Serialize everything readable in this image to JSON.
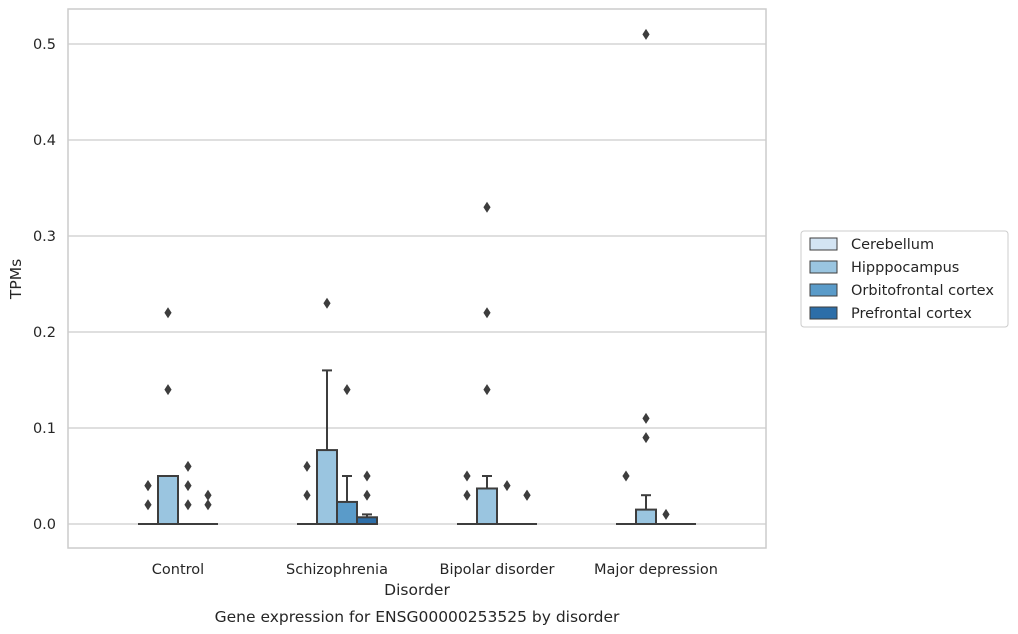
{
  "chart_data": {
    "type": "box",
    "title": "Gene expression for ENSG00000253525 by disorder",
    "xlabel": "Disorder",
    "ylabel": "TPMs",
    "ylim": [
      -0.025,
      0.535
    ],
    "yticks": [
      "0.0",
      "0.1",
      "0.2",
      "0.3",
      "0.4",
      "0.5"
    ],
    "grid": true,
    "legend_position": "right",
    "categories": [
      "Control",
      "Schizophrenia",
      "Bipolar disorder",
      "Major depression"
    ],
    "series": [
      {
        "name": "Cerebellum",
        "color": "#d3e4f3",
        "boxes": [
          {
            "q1": 0,
            "median": 0,
            "q3": 0,
            "whisker_low": 0,
            "whisker_high": 0,
            "outliers": [
              0.02,
              0.04,
              0.04
            ]
          },
          {
            "q1": 0,
            "median": 0,
            "q3": 0,
            "whisker_low": 0,
            "whisker_high": 0,
            "outliers": [
              0.03,
              0.06
            ]
          },
          {
            "q1": 0,
            "median": 0,
            "q3": 0,
            "whisker_low": 0,
            "whisker_high": 0,
            "outliers": [
              0.03,
              0.05
            ]
          },
          {
            "q1": 0,
            "median": 0,
            "q3": 0,
            "whisker_low": 0,
            "whisker_high": 0,
            "outliers": [
              0.05
            ]
          }
        ]
      },
      {
        "name": "Hipppocampus",
        "color": "#9ac5e0",
        "boxes": [
          {
            "q1": 0,
            "median": 0,
            "q3": 0.05,
            "whisker_low": 0,
            "whisker_high": 0.05,
            "outliers": [
              0.14,
              0.22
            ]
          },
          {
            "q1": 0,
            "median": 0,
            "q3": 0.077,
            "whisker_low": 0,
            "whisker_high": 0.16,
            "outliers": [
              0.23
            ]
          },
          {
            "q1": 0,
            "median": 0,
            "q3": 0.037,
            "whisker_low": 0,
            "whisker_high": 0.05,
            "outliers": [
              0.14,
              0.22,
              0.33
            ]
          },
          {
            "q1": 0,
            "median": 0,
            "q3": 0.015,
            "whisker_low": 0,
            "whisker_high": 0.03,
            "outliers": [
              0.09,
              0.11,
              0.51
            ]
          }
        ]
      },
      {
        "name": "Orbitofrontal cortex",
        "color": "#5a9bc9",
        "boxes": [
          {
            "q1": 0,
            "median": 0,
            "q3": 0,
            "whisker_low": 0,
            "whisker_high": 0,
            "outliers": [
              0.02,
              0.04,
              0.06
            ]
          },
          {
            "q1": 0,
            "median": 0,
            "q3": 0.023,
            "whisker_low": 0,
            "whisker_high": 0.05,
            "outliers": [
              0.14
            ]
          },
          {
            "q1": 0,
            "median": 0,
            "q3": 0,
            "whisker_low": 0,
            "whisker_high": 0,
            "outliers": [
              0.04
            ]
          },
          {
            "q1": 0,
            "median": 0,
            "q3": 0,
            "whisker_low": 0,
            "whisker_high": 0,
            "outliers": [
              0.01
            ]
          }
        ]
      },
      {
        "name": "Prefrontal cortex",
        "color": "#2d6ea8",
        "boxes": [
          {
            "q1": 0,
            "median": 0,
            "q3": 0,
            "whisker_low": 0,
            "whisker_high": 0,
            "outliers": [
              0.02,
              0.03
            ]
          },
          {
            "q1": 0,
            "median": 0,
            "q3": 0.007,
            "whisker_low": 0,
            "whisker_high": 0.01,
            "outliers": [
              0.03,
              0.05
            ]
          },
          {
            "q1": 0,
            "median": 0,
            "q3": 0,
            "whisker_low": 0,
            "whisker_high": 0,
            "outliers": [
              0.03,
              0.03
            ]
          },
          {
            "q1": 0,
            "median": 0,
            "q3": 0,
            "whisker_low": 0,
            "whisker_high": 0,
            "outliers": []
          }
        ]
      }
    ]
  }
}
